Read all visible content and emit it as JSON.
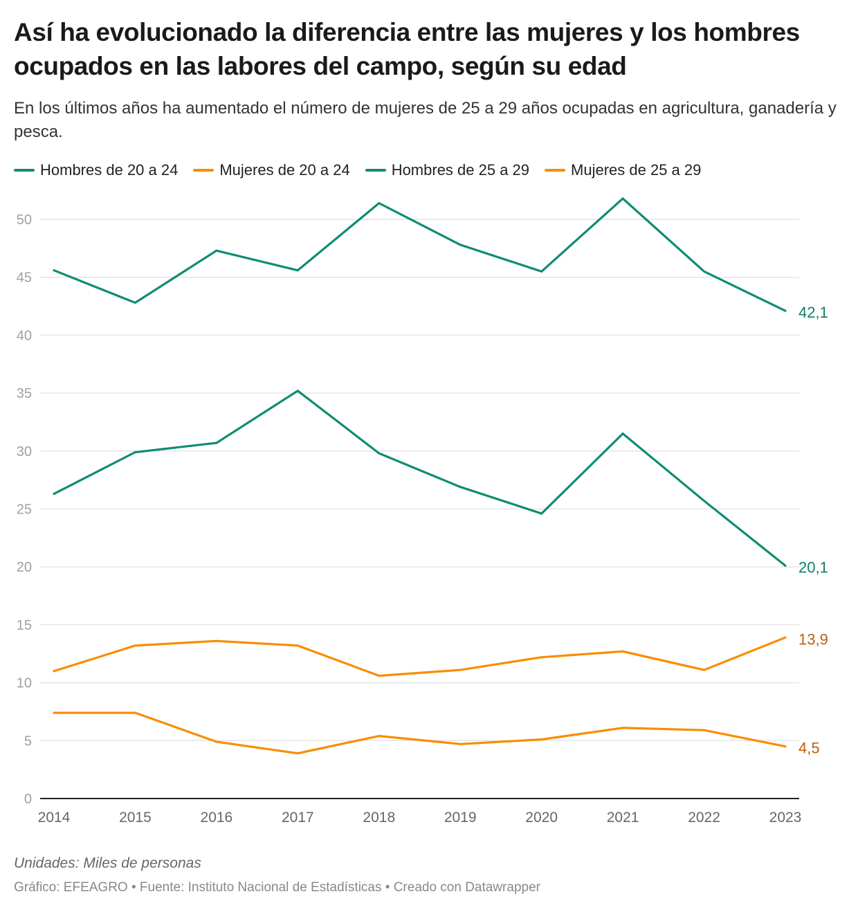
{
  "header": {
    "title": "Así ha evolucionado la diferencia entre las mujeres y los hombres ocupados en las labores del campo, según su edad",
    "subtitle": "En los últimos años ha aumentado el número de mujeres de 25 a 29 años ocupadas en agricultura, ganadería y pesca."
  },
  "legend": [
    {
      "label": "Hombres de 20 a 24",
      "color": "#0f8c72"
    },
    {
      "label": "Mujeres de 20 a 24",
      "color": "#fa8c00"
    },
    {
      "label": "Hombres de 25 a 29",
      "color": "#0f8c72"
    },
    {
      "label": "Mujeres de 25 a 29",
      "color": "#fa8c00"
    }
  ],
  "footer": {
    "notes": "Unidades: Miles de personas",
    "credits": "Gráfico: EFEAGRO • Fuente: Instituto Nacional de Estadísticas • Creado con Datawrapper"
  },
  "chart_data": {
    "type": "line",
    "title": "Así ha evolucionado la diferencia entre las mujeres y los hombres ocupados en las labores del campo, según su edad",
    "xlabel": "",
    "ylabel": "Miles de personas",
    "x": [
      "2014",
      "2015",
      "2016",
      "2017",
      "2018",
      "2019",
      "2020",
      "2021",
      "2022",
      "2023"
    ],
    "ylim": [
      0,
      52
    ],
    "yticks": [
      0,
      5,
      10,
      15,
      20,
      25,
      30,
      35,
      40,
      45,
      50
    ],
    "grid": true,
    "legend_position": "top-left",
    "series": [
      {
        "name": "Hombres de 25 a 29",
        "color": "#0f8c72",
        "label_color": "#0c8067",
        "end_label": "42,1",
        "values": [
          45.6,
          42.8,
          47.3,
          45.6,
          51.4,
          47.8,
          45.5,
          51.8,
          45.5,
          42.1
        ]
      },
      {
        "name": "Hombres de 20 a 24",
        "color": "#0f8c72",
        "label_color": "#0c8067",
        "end_label": "20,1",
        "values": [
          26.3,
          29.9,
          30.7,
          35.2,
          29.8,
          26.9,
          24.6,
          31.5,
          25.7,
          20.1
        ]
      },
      {
        "name": "Mujeres de 25 a 29",
        "color": "#fa8c00",
        "label_color": "#c05e0d",
        "end_label": "13,9",
        "values": [
          11.0,
          13.2,
          13.6,
          13.2,
          10.6,
          11.1,
          12.2,
          12.7,
          11.1,
          13.9
        ]
      },
      {
        "name": "Mujeres de 20 a 24",
        "color": "#fa8c00",
        "label_color": "#c05e0d",
        "end_label": "4,5",
        "values": [
          7.4,
          7.4,
          4.9,
          3.9,
          5.4,
          4.7,
          5.1,
          6.1,
          5.9,
          4.5
        ]
      }
    ]
  }
}
